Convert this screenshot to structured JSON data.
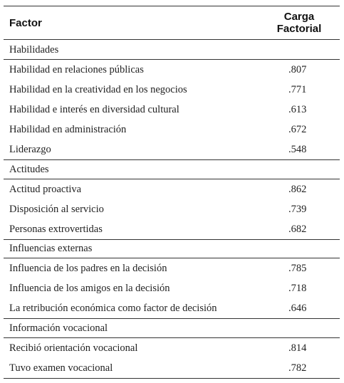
{
  "table": {
    "header": [
      "Factor",
      "Carga Factorial"
    ],
    "groups": [
      {
        "name": "Habilidades",
        "rows": [
          [
            "Habilidad en relaciones públicas",
            ".807"
          ],
          [
            "Habilidad en la creatividad en los negocios",
            ".771"
          ],
          [
            "Habilidad e interés en diversidad cultural",
            ".613"
          ],
          [
            "Habilidad en administración",
            ".672"
          ],
          [
            "Liderazgo",
            ".548"
          ]
        ]
      },
      {
        "name": "Actitudes",
        "rows": [
          [
            "Actitud proactiva",
            ".862"
          ],
          [
            "Disposición al servicio",
            ".739"
          ],
          [
            "Personas extrovertidas",
            ".682"
          ]
        ]
      },
      {
        "name": "Influencias externas",
        "rows": [
          [
            "Influencia de los padres en la decisión",
            ".785"
          ],
          [
            "Influencia de los amigos en la decisión",
            ".718"
          ],
          [
            "La retribución económica como factor de decisión",
            ".646"
          ]
        ]
      },
      {
        "name": "Información vocacional",
        "rows": [
          [
            "Recibió orientación vocacional",
            ".814"
          ],
          [
            "Tuvo examen vocacional",
            ".782"
          ]
        ]
      }
    ]
  }
}
